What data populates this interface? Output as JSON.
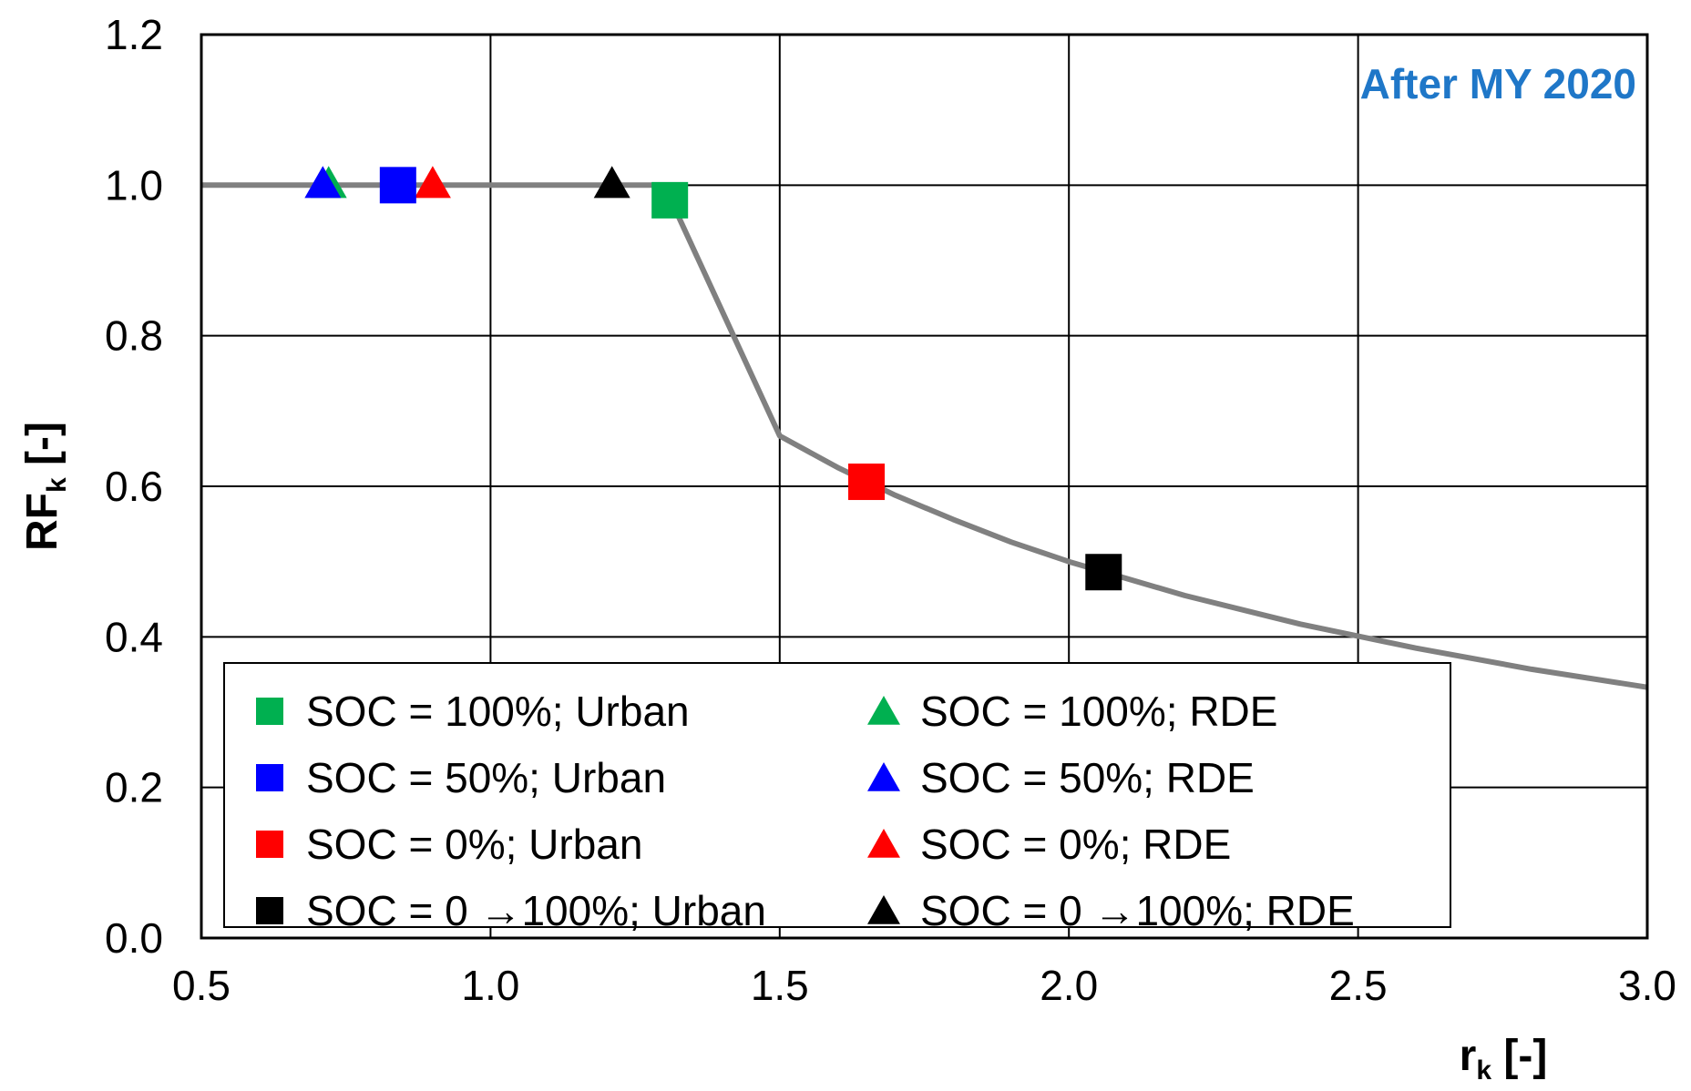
{
  "chart_data": {
    "type": "scatter",
    "xlabel": "r",
    "xlabel_sub": "k",
    "xlabel_suffix": " [-]",
    "ylabel": "RF",
    "ylabel_sub": "k",
    "ylabel_suffix": " [-]",
    "xlim": [
      0.5,
      3.0
    ],
    "ylim": [
      0.0,
      1.2
    ],
    "xticks": [
      0.5,
      1.0,
      1.5,
      2.0,
      2.5,
      3.0
    ],
    "xtick_labels": [
      "0.5",
      "1.0",
      "1.5",
      "2.0",
      "2.5",
      "3.0"
    ],
    "yticks": [
      0.0,
      0.2,
      0.4,
      0.6,
      0.8,
      1.0,
      1.2
    ],
    "ytick_labels": [
      "0.0",
      "0.2",
      "0.4",
      "0.6",
      "0.8",
      "1.0",
      "1.2"
    ],
    "grid": true,
    "annotation": "After MY 2020",
    "annotation_color": "#1f77c8",
    "curve": {
      "name": "RF curve",
      "color": "#808080",
      "points": [
        [
          0.5,
          1.0
        ],
        [
          1.3,
          1.0
        ],
        [
          1.5,
          0.667
        ],
        [
          1.6,
          0.625
        ],
        [
          1.7,
          0.588
        ],
        [
          1.8,
          0.556
        ],
        [
          1.9,
          0.526
        ],
        [
          2.0,
          0.5
        ],
        [
          2.2,
          0.455
        ],
        [
          2.4,
          0.417
        ],
        [
          2.6,
          0.385
        ],
        [
          2.8,
          0.357
        ],
        [
          3.0,
          0.333
        ]
      ]
    },
    "series": [
      {
        "name": "SOC = 100%; Urban",
        "marker": "square",
        "color": "#00b050",
        "x": 1.31,
        "y": 0.98
      },
      {
        "name": "SOC = 100%; RDE",
        "marker": "triangle",
        "color": "#00b050",
        "x": 0.72,
        "y": 1.0
      },
      {
        "name": "SOC = 50%; Urban",
        "marker": "square",
        "color": "#0000ff",
        "x": 0.84,
        "y": 1.0
      },
      {
        "name": "SOC = 50%; RDE",
        "marker": "triangle",
        "color": "#0000ff",
        "x": 0.71,
        "y": 1.0
      },
      {
        "name": "SOC = 0%; Urban",
        "marker": "square",
        "color": "#ff0000",
        "x": 1.65,
        "y": 0.606
      },
      {
        "name": "SOC = 0%; RDE",
        "marker": "triangle",
        "color": "#ff0000",
        "x": 0.9,
        "y": 1.0
      },
      {
        "name": "SOC = 0 →100%; Urban",
        "marker": "square",
        "color": "#000000",
        "x": 2.06,
        "y": 0.486
      },
      {
        "name": "SOC = 0 →100%; RDE",
        "marker": "triangle",
        "color": "#000000",
        "x": 1.21,
        "y": 1.0
      }
    ],
    "legend": {
      "placement": "bottom-left",
      "columns": 2,
      "entries": [
        {
          "label": "SOC = 100%; Urban",
          "marker": "square",
          "color": "#00b050"
        },
        {
          "label": "SOC = 100%; RDE",
          "marker": "triangle",
          "color": "#00b050"
        },
        {
          "label": "SOC = 50%; Urban",
          "marker": "square",
          "color": "#0000ff"
        },
        {
          "label": "SOC = 50%; RDE",
          "marker": "triangle",
          "color": "#0000ff"
        },
        {
          "label": "SOC = 0%; Urban",
          "marker": "square",
          "color": "#ff0000"
        },
        {
          "label": "SOC = 0%; RDE",
          "marker": "triangle",
          "color": "#ff0000"
        },
        {
          "label": "SOC = 0 →100%; Urban",
          "marker": "square",
          "color": "#000000"
        },
        {
          "label": "SOC = 0 →100%; RDE",
          "marker": "triangle",
          "color": "#000000"
        }
      ]
    }
  }
}
